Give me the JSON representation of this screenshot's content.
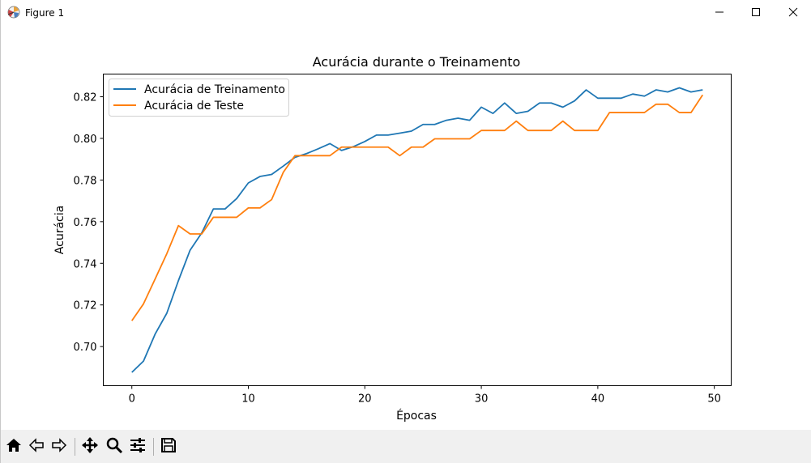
{
  "window": {
    "title": "Figure 1",
    "icon": "matplotlib-icon"
  },
  "controls": {
    "minimize": "minimize-icon",
    "maximize": "maximize-icon",
    "close": "close-icon"
  },
  "toolbar": {
    "items": [
      "home-icon",
      "back-icon",
      "forward-icon",
      "pan-icon",
      "zoom-icon",
      "configure-subplots-icon",
      "save-icon"
    ]
  },
  "chart_data": {
    "type": "line",
    "title": "Acurácia durante o Treinamento",
    "xlabel": "Épocas",
    "ylabel": "Acurácia",
    "xlim": [
      -2.45,
      51.45
    ],
    "ylim": [
      0.6812,
      0.8309
    ],
    "xticks": [
      0,
      10,
      20,
      30,
      40,
      50
    ],
    "yticks": [
      0.7,
      0.72,
      0.74,
      0.76,
      0.78,
      0.8,
      0.82
    ],
    "xtick_labels": [
      "0",
      "10",
      "20",
      "30",
      "40",
      "50"
    ],
    "ytick_labels": [
      "0.70",
      "0.72",
      "0.74",
      "0.76",
      "0.78",
      "0.80",
      "0.82"
    ],
    "grid": false,
    "legend_position": "upper-left",
    "x": [
      0,
      1,
      2,
      3,
      4,
      5,
      6,
      7,
      8,
      9,
      10,
      11,
      12,
      13,
      14,
      15,
      16,
      17,
      18,
      19,
      20,
      21,
      22,
      23,
      24,
      25,
      26,
      27,
      28,
      29,
      30,
      31,
      32,
      33,
      34,
      35,
      36,
      37,
      38,
      39,
      40,
      41,
      42,
      43,
      44,
      45,
      46,
      47,
      48,
      49
    ],
    "series": [
      {
        "name": "Acurácia de Treinamento",
        "color": "#1f77b4",
        "values": [
          0.6876,
          0.693,
          0.706,
          0.716,
          0.7317,
          0.7463,
          0.7546,
          0.7661,
          0.7661,
          0.7711,
          0.7786,
          0.7817,
          0.7827,
          0.7867,
          0.7909,
          0.7927,
          0.795,
          0.7975,
          0.7942,
          0.796,
          0.7985,
          0.8016,
          0.8016,
          0.8025,
          0.8035,
          0.8067,
          0.8067,
          0.8087,
          0.8097,
          0.8087,
          0.815,
          0.812,
          0.817,
          0.812,
          0.813,
          0.817,
          0.817,
          0.815,
          0.818,
          0.8233,
          0.8193,
          0.8193,
          0.8193,
          0.8213,
          0.8203,
          0.8233,
          0.8223,
          0.8243,
          0.8223,
          0.8233
        ]
      },
      {
        "name": "Acurácia de Teste",
        "color": "#ff7f0e",
        "values": [
          0.7124,
          0.7205,
          0.7325,
          0.7446,
          0.7581,
          0.7541,
          0.7541,
          0.7621,
          0.7621,
          0.7621,
          0.7666,
          0.7666,
          0.7706,
          0.7837,
          0.7917,
          0.7917,
          0.7917,
          0.7917,
          0.7958,
          0.7958,
          0.7958,
          0.7958,
          0.7958,
          0.7917,
          0.7958,
          0.7958,
          0.7998,
          0.7998,
          0.7998,
          0.7998,
          0.8038,
          0.8038,
          0.8038,
          0.8083,
          0.8038,
          0.8038,
          0.8038,
          0.8083,
          0.8038,
          0.8038,
          0.8038,
          0.8124,
          0.8124,
          0.8124,
          0.8124,
          0.8164,
          0.8164,
          0.8124,
          0.8124,
          0.8209
        ]
      }
    ]
  }
}
